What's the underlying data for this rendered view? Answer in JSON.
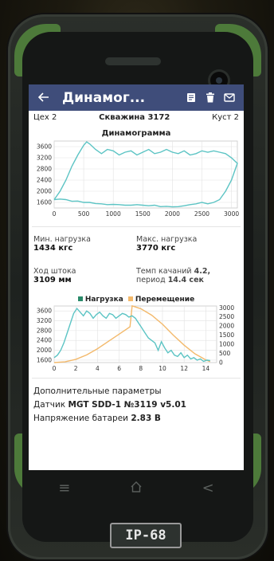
{
  "app": {
    "title": "Динамог...",
    "icons": [
      "arrow-back-icon",
      "document-icon",
      "trash-icon",
      "mail-icon"
    ]
  },
  "well": {
    "shop": "Цех 2",
    "name": "Скважина 3172",
    "pad": "Куст 2"
  },
  "chart1_title": "Динамограмма",
  "params": {
    "min_load_label": "Мин. нагрузка",
    "min_load_value": "1434 кгс",
    "max_load_label": "Макс. нагрузка",
    "max_load_value": "3770 кгс",
    "stroke_label": "Ход штока",
    "stroke_value": "3109 мм",
    "rate_label": "Темп качаний",
    "rate_value": "4.2,",
    "period_label": "период",
    "period_value": "14.4 сек"
  },
  "legend": {
    "load": "Нагрузка",
    "displacement": "Перемещение"
  },
  "extra": {
    "header": "Дополнительные параметры",
    "sensor_label": "Датчик",
    "sensor_value": "MGT SDD-1 №3119 v5.01",
    "battery_label": "Напряжение батареи",
    "battery_value": "2.83 В"
  },
  "colors": {
    "appbar": "#3f4d7a",
    "load": "#5cc4c4",
    "load_legend": "#2a8a6a",
    "displacement": "#f3b96b"
  },
  "badge": "IP-68",
  "chart_data": [
    {
      "type": "line",
      "title": "Динамограмма",
      "xlim": [
        0,
        3100
      ],
      "ylim": [
        1400,
        3800
      ],
      "xticks": [
        0,
        500,
        1000,
        1500,
        2000,
        2500,
        3000
      ],
      "yticks": [
        1600,
        2000,
        2400,
        2800,
        3200,
        3600
      ],
      "grid": true,
      "series": [
        {
          "x": [
            0,
            100,
            200,
            300,
            400,
            500,
            550,
            600,
            700,
            800,
            900,
            1000,
            1100,
            1200,
            1300,
            1400,
            1500,
            1600,
            1700,
            1800,
            1900,
            2000,
            2100,
            2200,
            2300,
            2400,
            2500,
            2600,
            2700,
            2800,
            2900,
            3000,
            3100,
            3050,
            3000,
            2900,
            2800,
            2700,
            2600,
            2500,
            2400,
            2300,
            2200,
            2100,
            2000,
            1900,
            1800,
            1700,
            1600,
            1500,
            1400,
            1300,
            1200,
            1100,
            1000,
            900,
            800,
            700,
            600,
            500,
            400,
            300,
            200,
            100,
            0
          ],
          "y": [
            1700,
            2000,
            2400,
            2900,
            3300,
            3650,
            3770,
            3700,
            3500,
            3350,
            3500,
            3450,
            3300,
            3400,
            3450,
            3300,
            3400,
            3500,
            3350,
            3400,
            3500,
            3400,
            3350,
            3450,
            3300,
            3350,
            3450,
            3400,
            3450,
            3400,
            3350,
            3200,
            3000,
            2700,
            2400,
            2000,
            1700,
            1600,
            1550,
            1600,
            1550,
            1520,
            1480,
            1450,
            1440,
            1460,
            1450,
            1500,
            1480,
            1500,
            1520,
            1500,
            1500,
            1520,
            1530,
            1520,
            1550,
            1560,
            1600,
            1600,
            1650,
            1640,
            1700,
            1720,
            1700
          ]
        }
      ]
    },
    {
      "type": "line",
      "xlim": [
        0,
        15
      ],
      "xticks": [
        0,
        2,
        4,
        6,
        8,
        10,
        12,
        14
      ],
      "ylim_left": [
        1500,
        3800
      ],
      "yticks_left": [
        1600,
        2000,
        2400,
        2800,
        3200,
        3600
      ],
      "ylim_right": [
        0,
        3100
      ],
      "yticks_right": [
        0,
        500,
        1000,
        1500,
        2000,
        2500,
        3000
      ],
      "grid": true,
      "legend": "top-center",
      "series": [
        {
          "name": "Нагрузка",
          "axis": "left",
          "x": [
            0,
            0.3,
            0.6,
            0.9,
            1.2,
            1.5,
            1.8,
            2.1,
            2.4,
            2.7,
            3.0,
            3.3,
            3.6,
            3.9,
            4.2,
            4.5,
            4.8,
            5.1,
            5.4,
            5.7,
            6.0,
            6.3,
            6.6,
            6.9,
            7.2,
            7.5,
            7.8,
            8.1,
            8.4,
            8.7,
            9.0,
            9.3,
            9.6,
            9.9,
            10.2,
            10.5,
            10.8,
            11.1,
            11.4,
            11.7,
            12.0,
            12.3,
            12.6,
            12.9,
            13.2,
            13.5,
            13.8,
            14.1,
            14.4
          ],
          "y": [
            1700,
            1800,
            2000,
            2300,
            2700,
            3100,
            3500,
            3700,
            3550,
            3400,
            3600,
            3500,
            3300,
            3450,
            3550,
            3400,
            3300,
            3500,
            3450,
            3300,
            3400,
            3500,
            3450,
            3350,
            3400,
            3300,
            3100,
            2900,
            2700,
            2500,
            2400,
            2300,
            2000,
            2350,
            2100,
            1900,
            2000,
            1800,
            1750,
            1900,
            1700,
            1800,
            1650,
            1700,
            1600,
            1650,
            1550,
            1600,
            1580
          ]
        },
        {
          "name": "Перемещение",
          "axis": "right",
          "x": [
            0,
            1,
            2,
            3,
            4,
            5,
            6,
            7,
            7.2,
            8,
            9,
            10,
            11,
            12,
            13,
            14,
            14.4
          ],
          "y": [
            0,
            40,
            180,
            420,
            760,
            1160,
            1560,
            1960,
            3109,
            2950,
            2600,
            2100,
            1500,
            950,
            480,
            150,
            50
          ]
        }
      ]
    }
  ]
}
